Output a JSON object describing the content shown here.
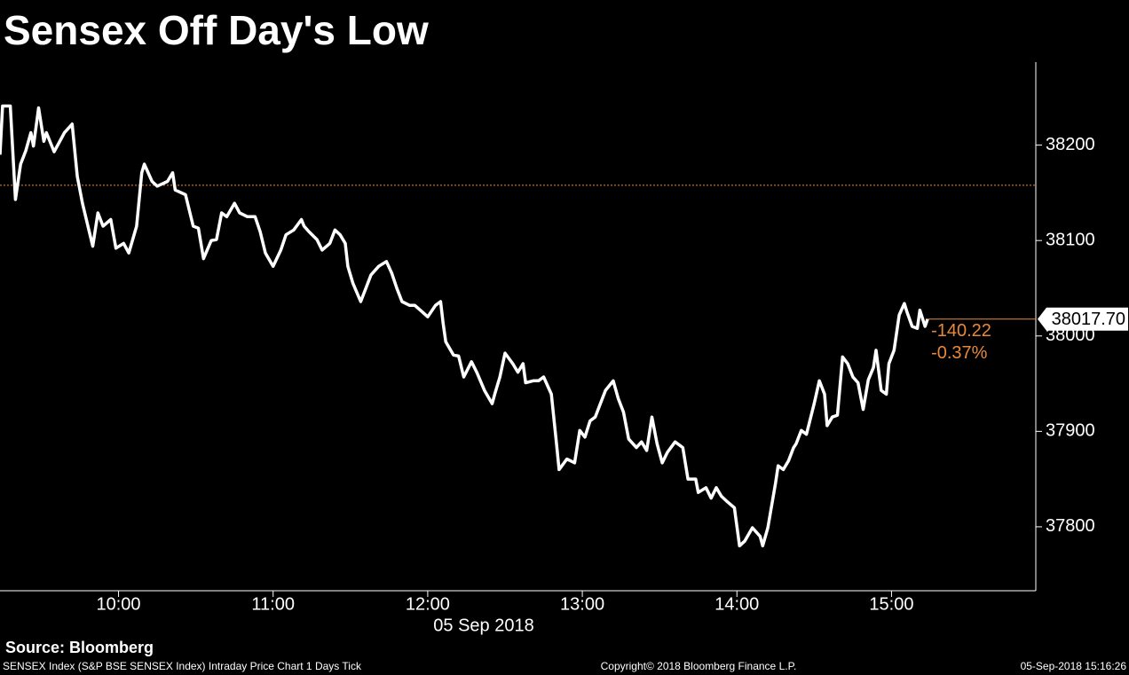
{
  "chart_data": {
    "type": "line",
    "title": "Sensex Off Day's Low",
    "x_label": "05 Sep 2018",
    "source": "Source: Bloomberg",
    "footer_left": "SENSEX Index (S&P BSE SENSEX Index) Intraday Price Chart 1 Days  Tick",
    "footer_center": "Copyright© 2018 Bloomberg Finance L.P.",
    "footer_right": "05-Sep-2018 15:16:26",
    "color": "#ffffff",
    "reference_color": "#e8893a",
    "previous_close": 38157.92,
    "last_value": {
      "value": 38017.7,
      "label": "38017.70"
    },
    "change": -140.22,
    "change_pct": {
      "value": -0.37,
      "label": "-0.37%"
    },
    "x": [
      "09:14",
      "09:15",
      "09:18",
      "09:20",
      "09:22",
      "09:24",
      "09:26",
      "09:27",
      "09:29",
      "09:31",
      "09:32",
      "09:35",
      "09:38",
      "09:39",
      "09:42",
      "09:44",
      "09:46",
      "09:50",
      "09:52",
      "09:54",
      "09:57",
      "09:59",
      "10:02",
      "10:04",
      "10:07",
      "10:09",
      "10:10",
      "10:13",
      "10:15",
      "10:19",
      "10:21",
      "10:22",
      "10:26",
      "10:29",
      "10:31",
      "10:33",
      "10:36",
      "10:38",
      "10:40",
      "10:42",
      "10:45",
      "10:47",
      "10:50",
      "10:53",
      "10:55",
      "10:57",
      "11:00",
      "11:03",
      "11:05",
      "11:08",
      "11:11",
      "11:12",
      "11:14",
      "11:17",
      "11:19",
      "11:22",
      "11:24",
      "11:26",
      "11:28",
      "11:29",
      "11:31",
      "11:34",
      "11:36",
      "11:38",
      "11:41",
      "11:44",
      "11:46",
      "11:48",
      "11:50",
      "11:53",
      "11:55",
      "11:58",
      "12:00",
      "12:03",
      "12:05",
      "12:06",
      "12:07",
      "12:10",
      "12:12",
      "12:14",
      "12:17",
      "12:19",
      "12:22",
      "12:25",
      "12:26",
      "12:28",
      "12:30",
      "12:33",
      "12:35",
      "12:37",
      "12:38",
      "12:41",
      "12:43",
      "12:45",
      "12:48",
      "12:50",
      "12:51",
      "12:54",
      "12:57",
      "12:59",
      "13:01",
      "13:03",
      "13:05",
      "13:07",
      "13:09",
      "13:12",
      "13:14",
      "13:16",
      "13:18",
      "13:21",
      "13:23",
      "13:25",
      "13:27",
      "13:29",
      "13:31",
      "13:33",
      "13:36",
      "13:39",
      "13:41",
      "13:44",
      "13:45",
      "13:48",
      "13:50",
      "13:52",
      "13:54",
      "13:56",
      "13:59",
      "14:01",
      "14:03",
      "14:06",
      "14:09",
      "14:10",
      "14:12",
      "14:15",
      "14:16",
      "14:18",
      "14:20",
      "14:22",
      "14:23",
      "14:25",
      "14:27",
      "14:30",
      "14:32",
      "14:34",
      "14:35",
      "14:37",
      "14:39",
      "14:41",
      "14:43",
      "14:45",
      "14:47",
      "14:49",
      "14:51",
      "14:53",
      "14:54",
      "14:56",
      "14:58",
      "14:59",
      "15:01",
      "15:03",
      "15:05",
      "15:06",
      "15:08",
      "15:10",
      "15:11",
      "15:13",
      "15:14"
    ],
    "values": [
      38190,
      38241,
      38241,
      38143,
      38180,
      38194,
      38213,
      38199,
      38239,
      38204,
      38213,
      38193,
      38208,
      38213,
      38222,
      38167,
      38139,
      38094,
      38129,
      38115,
      38122,
      38092,
      38097,
      38087,
      38115,
      38171,
      38180,
      38162,
      38157,
      38162,
      38171,
      38153,
      38148,
      38115,
      38113,
      38081,
      38100,
      38101,
      38129,
      38125,
      38139,
      38129,
      38125,
      38125,
      38109,
      38087,
      38073,
      38090,
      38106,
      38111,
      38122,
      38115,
      38109,
      38101,
      38090,
      38097,
      38111,
      38106,
      38097,
      38073,
      38055,
      38036,
      38050,
      38064,
      38073,
      38078,
      38066,
      38050,
      38036,
      38032,
      38032,
      38025,
      38020,
      38032,
      38036,
      38013,
      37994,
      37980,
      37979,
      37957,
      37973,
      37962,
      37943,
      37929,
      37939,
      37957,
      37982,
      37971,
      37962,
      37971,
      37951,
      37953,
      37953,
      37957,
      37939,
      37887,
      37860,
      37871,
      37867,
      37901,
      37894,
      37911,
      37915,
      37929,
      37943,
      37953,
      37934,
      37920,
      37892,
      37883,
      37889,
      37880,
      37915,
      37887,
      37867,
      37878,
      37889,
      37883,
      37850,
      37850,
      37836,
      37841,
      37830,
      37841,
      37832,
      37827,
      37820,
      37780,
      37785,
      37799,
      37790,
      37780,
      37799,
      37846,
      37864,
      37860,
      37869,
      37883,
      37887,
      37901,
      37897,
      37929,
      37953,
      37939,
      37906,
      37915,
      37917,
      37978,
      37971,
      37957,
      37951,
      37923,
      37954,
      37967,
      37985,
      37943,
      37939,
      37971,
      37985,
      38022,
      38034,
      38025,
      38010,
      38008,
      38027,
      38010,
      38017.7
    ],
    "xlim": [
      "09:14",
      "15:56"
    ],
    "xticks": [
      "10:00",
      "11:00",
      "12:00",
      "13:00",
      "14:00",
      "15:00"
    ],
    "ylim": [
      37733,
      38287
    ],
    "yticks": [
      37800,
      37900,
      38000,
      38100,
      38200
    ]
  }
}
